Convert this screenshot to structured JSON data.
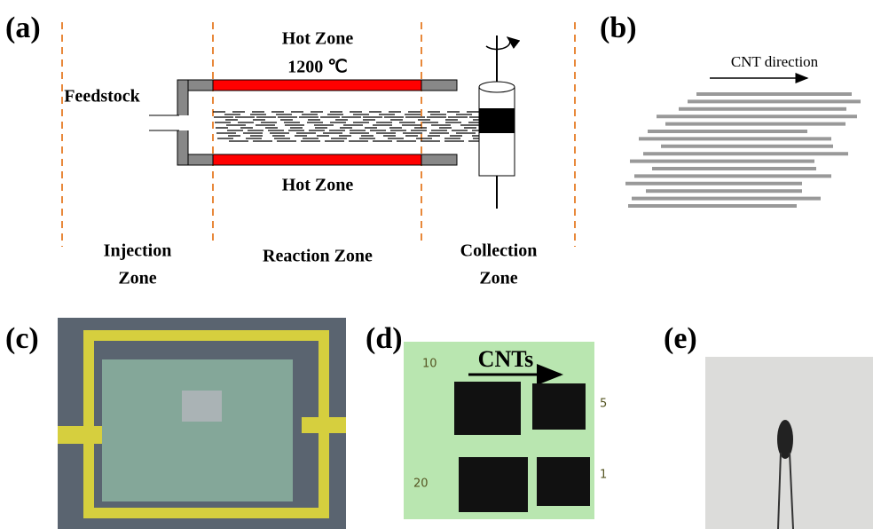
{
  "panels": {
    "a": {
      "label": "(a)",
      "hot_zone_top": "Hot Zone",
      "temperature": "1200 ℃",
      "hot_zone_bottom": "Hot Zone",
      "feedstock": "Feedstock",
      "injection_zone": [
        "Injection",
        "Zone"
      ],
      "reaction_zone": "Reaction Zone",
      "collection_zone": [
        "Collection",
        "Zone"
      ]
    },
    "b": {
      "label": "(b)",
      "direction": "CNT direction"
    },
    "c": {
      "label": "(c)"
    },
    "d": {
      "label": "(d)",
      "direction": "CNTs",
      "sample_marks": [
        "10",
        "5",
        "20",
        "1"
      ]
    },
    "e": {
      "label": "(e)"
    }
  }
}
